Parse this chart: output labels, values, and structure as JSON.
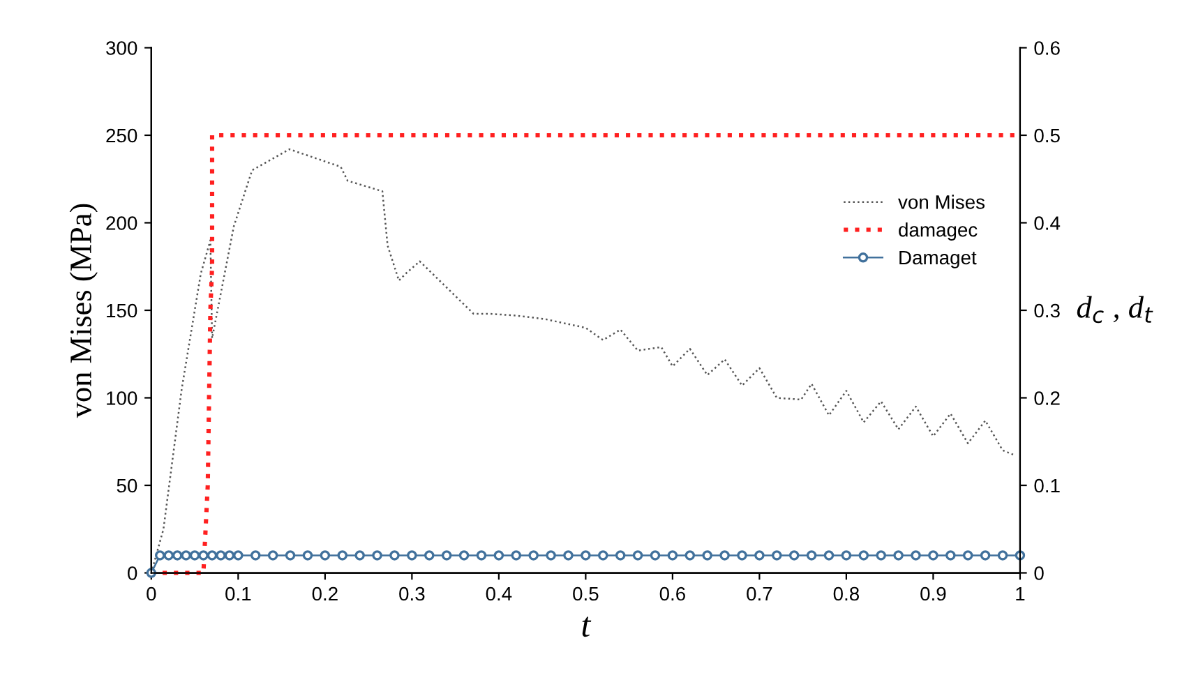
{
  "chart_data": {
    "type": "line",
    "xlabel": "t",
    "ylabel": "von Mises (MPa)",
    "y2label": "d$_{c}$ , d$_{t}$",
    "xlim": [
      0,
      1
    ],
    "xticks": [
      0,
      0.1,
      0.2,
      0.3,
      0.4,
      0.5,
      0.6,
      0.7,
      0.8,
      0.9,
      1
    ],
    "ylim": [
      0,
      300
    ],
    "yticks": [
      0,
      50,
      100,
      150,
      200,
      250,
      300
    ],
    "y2lim": [
      0,
      0.6
    ],
    "y2ticks": [
      0,
      0.1,
      0.2,
      0.3,
      0.4,
      0.5,
      0.6
    ],
    "grid": false,
    "legend": "right",
    "series": [
      {
        "name": "von Mises",
        "color": "#555555",
        "line_style": "dotted",
        "marker": "none",
        "x": [
          0,
          0.014,
          0.035,
          0.049,
          0.057,
          0.068,
          0.07,
          0.095,
          0.116,
          0.159,
          0.218,
          0.226,
          0.266,
          0.272,
          0.285,
          0.293,
          0.309,
          0.371,
          0.39,
          0.42,
          0.453,
          0.5,
          0.52,
          0.54,
          0.56,
          0.587,
          0.6,
          0.62,
          0.64,
          0.66,
          0.68,
          0.7,
          0.72,
          0.748,
          0.76,
          0.78,
          0.8,
          0.82,
          0.84,
          0.86,
          0.88,
          0.9,
          0.92,
          0.94,
          0.96,
          0.98,
          0.995
        ],
        "values": [
          0,
          25,
          105,
          147,
          171,
          190,
          134,
          198,
          230,
          242,
          232,
          224,
          218,
          187,
          167,
          171,
          178,
          148,
          148,
          147,
          145,
          140,
          133,
          139,
          127,
          129,
          118,
          128,
          113,
          122,
          107,
          117,
          100,
          99,
          108,
          90,
          104,
          86,
          98,
          82,
          95,
          78,
          91,
          74,
          87,
          70,
          67
        ]
      },
      {
        "name": "damagec",
        "color": "#ff2020",
        "line_style": "dotted",
        "marker": "none",
        "axis": "y2",
        "x": [
          0,
          0.06,
          0.065,
          0.068,
          0.07,
          0.07,
          1
        ],
        "values": [
          0,
          0,
          0.1,
          0.3,
          0.35,
          0.5,
          0.5
        ]
      },
      {
        "name": "Damaget",
        "color": "#41719c",
        "line_style": "solid",
        "marker": "circle",
        "axis": "y2",
        "x": [
          0,
          0.01,
          0.02,
          0.03,
          0.04,
          0.05,
          0.06,
          0.07,
          0.08,
          0.09,
          0.1,
          0.12,
          0.14,
          0.16,
          0.18,
          0.2,
          0.22,
          0.24,
          0.26,
          0.28,
          0.3,
          0.32,
          0.34,
          0.36,
          0.38,
          0.4,
          0.42,
          0.44,
          0.46,
          0.48,
          0.5,
          0.52,
          0.54,
          0.56,
          0.58,
          0.6,
          0.62,
          0.64,
          0.66,
          0.68,
          0.7,
          0.72,
          0.74,
          0.76,
          0.78,
          0.8,
          0.82,
          0.84,
          0.86,
          0.88,
          0.9,
          0.92,
          0.94,
          0.96,
          0.98,
          1
        ],
        "values": [
          0,
          0.02,
          0.02,
          0.02,
          0.02,
          0.02,
          0.02,
          0.02,
          0.02,
          0.02,
          0.02,
          0.02,
          0.02,
          0.02,
          0.02,
          0.02,
          0.02,
          0.02,
          0.02,
          0.02,
          0.02,
          0.02,
          0.02,
          0.02,
          0.02,
          0.02,
          0.02,
          0.02,
          0.02,
          0.02,
          0.02,
          0.02,
          0.02,
          0.02,
          0.02,
          0.02,
          0.02,
          0.02,
          0.02,
          0.02,
          0.02,
          0.02,
          0.02,
          0.02,
          0.02,
          0.02,
          0.02,
          0.02,
          0.02,
          0.02,
          0.02,
          0.02,
          0.02,
          0.02,
          0.02,
          0.02
        ]
      }
    ]
  }
}
